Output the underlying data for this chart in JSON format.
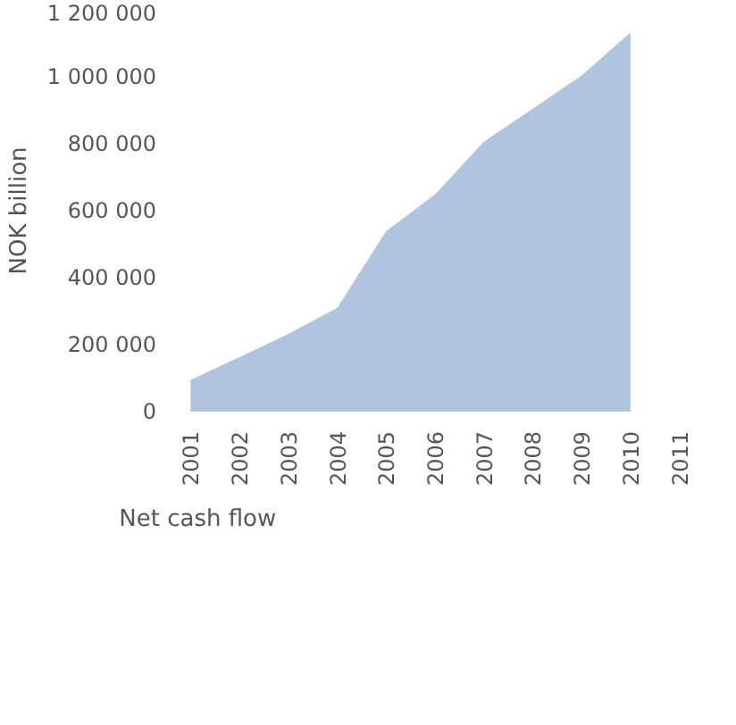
{
  "chart_data": {
    "type": "area",
    "ylabel": "NOK billion",
    "categories": [
      "2001",
      "2002",
      "2003",
      "2004",
      "2005",
      "2006",
      "2007",
      "2008",
      "2009",
      "2010",
      "2011"
    ],
    "series": [
      {
        "name": "Net cash flow",
        "color": "#b0c4de",
        "values": [
          95000,
          163000,
          232000,
          310000,
          539000,
          649000,
          806000,
          905000,
          1004000,
          1132000,
          null
        ]
      }
    ],
    "ylim": [
      0,
      1200000
    ],
    "yticks": [
      {
        "value": 0,
        "label": "0"
      },
      {
        "value": 200000,
        "label": "200 000"
      },
      {
        "value": 400000,
        "label": "400 000"
      },
      {
        "value": 600000,
        "label": "600 000"
      },
      {
        "value": 800000,
        "label": "800 000"
      },
      {
        "value": 1000000,
        "label": "1 000 000"
      },
      {
        "value": 1200000,
        "label": "1 200 000"
      }
    ],
    "grid": false,
    "legend": "bottom"
  }
}
